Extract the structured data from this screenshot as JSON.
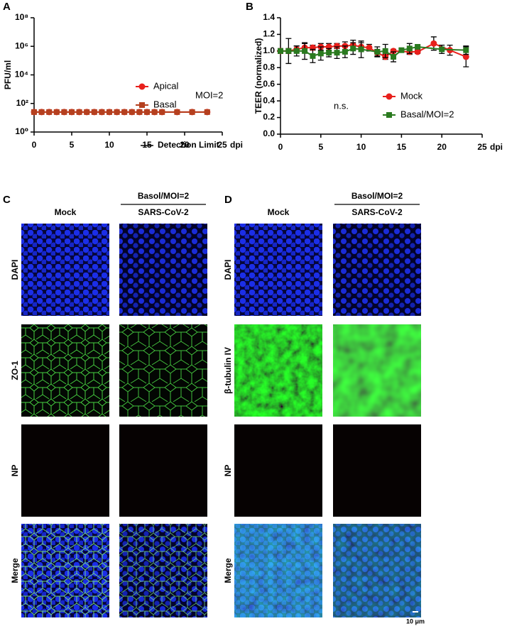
{
  "chart_data": [
    {
      "type": "line",
      "panel_label": "A",
      "ylabel": "PFU/ml",
      "xlabel": "dpi",
      "log_y": true,
      "xlim": [
        0,
        25
      ],
      "xticks": [
        0,
        5,
        10,
        15,
        20,
        25
      ],
      "ylim": [
        1,
        100000000
      ],
      "yticks": [
        {
          "value": 1,
          "label": "10⁰"
        },
        {
          "value": 100,
          "label": "10²"
        },
        {
          "value": 10000,
          "label": "10⁴"
        },
        {
          "value": 1000000,
          "label": "10⁶"
        },
        {
          "value": 100000000,
          "label": "10⁸"
        }
      ],
      "annotation": "MOI=2",
      "reference_line": {
        "name": "Detection Limit",
        "value": 25,
        "color": "#000000"
      },
      "series": [
        {
          "name": "Apical",
          "color": "#e8201c",
          "marker": "circle",
          "x": [
            0,
            1,
            2,
            3,
            4,
            5,
            6,
            7,
            8,
            9,
            10,
            11,
            12,
            13,
            14,
            15,
            16,
            17,
            19,
            21,
            23
          ],
          "values": [
            25,
            25,
            25,
            25,
            25,
            25,
            25,
            25,
            25,
            25,
            25,
            25,
            25,
            25,
            25,
            25,
            25,
            25,
            25,
            25,
            25
          ]
        },
        {
          "name": "Basal",
          "color": "#b5401f",
          "marker": "square",
          "x": [
            0,
            1,
            2,
            3,
            4,
            5,
            6,
            7,
            8,
            9,
            10,
            11,
            12,
            13,
            14,
            15,
            16,
            17,
            19,
            21,
            23
          ],
          "values": [
            25,
            25,
            25,
            25,
            25,
            25,
            25,
            25,
            25,
            25,
            25,
            25,
            25,
            25,
            25,
            25,
            25,
            25,
            25,
            25,
            25
          ]
        }
      ]
    },
    {
      "type": "line",
      "panel_label": "B",
      "ylabel": "TEER (normalized)",
      "xlabel": "dpi",
      "xlim": [
        0,
        25
      ],
      "xticks": [
        0,
        5,
        10,
        15,
        20,
        25
      ],
      "ylim": [
        0,
        1.4
      ],
      "yticks": [
        {
          "value": 0,
          "label": "0.0"
        },
        0.2,
        0.4,
        0.6,
        0.8,
        {
          "value": 1,
          "label": "1.0"
        },
        1.2,
        1.4
      ],
      "annotation": "n.s.",
      "series": [
        {
          "name": "Mock",
          "color": "#e8201c",
          "marker": "circle",
          "x": [
            0,
            1,
            2,
            3,
            4,
            5,
            6,
            7,
            8,
            9,
            10,
            11,
            12,
            13,
            14,
            16,
            17,
            19,
            21,
            23
          ],
          "values": [
            1.0,
            1.0,
            1.02,
            1.04,
            1.04,
            1.05,
            1.05,
            1.06,
            1.06,
            1.07,
            1.05,
            1.04,
            0.98,
            0.93,
            1.0,
            0.99,
            0.99,
            1.09,
            1.01,
            0.93
          ],
          "errors": [
            0.03,
            0.15,
            0.04,
            0.05,
            0.03,
            0.04,
            0.04,
            0.03,
            0.05,
            0.06,
            0.05,
            0.04,
            0.04,
            0.03,
            0.02,
            0.03,
            0.02,
            0.08,
            0.06,
            0.12
          ]
        },
        {
          "name": "Basal/MOI=2",
          "color": "#2a7a1f",
          "marker": "square",
          "x": [
            0,
            1,
            2,
            3,
            4,
            5,
            6,
            7,
            8,
            9,
            10,
            12,
            13,
            14,
            15,
            16,
            17,
            20,
            23
          ],
          "values": [
            1.0,
            1.0,
            1.0,
            1.0,
            0.94,
            0.97,
            0.98,
            0.98,
            0.99,
            1.03,
            1.02,
            0.99,
            1.0,
            0.93,
            1.01,
            1.03,
            1.05,
            1.02,
            1.01
          ],
          "errors": [
            0.02,
            0.03,
            0.06,
            0.1,
            0.08,
            0.08,
            0.05,
            0.07,
            0.07,
            0.07,
            0.1,
            0.06,
            0.08,
            0.06,
            0.02,
            0.06,
            0.02,
            0.05,
            0.05
          ]
        }
      ]
    }
  ],
  "panels": [
    {
      "label": "C",
      "group": "Basol/MOI=2",
      "columns": [
        "Mock",
        "SARS-CoV-2"
      ],
      "rows": [
        "DAPI",
        "ZO-1",
        "NP",
        "Merge"
      ]
    },
    {
      "label": "D",
      "group": "Basol/MOI=2",
      "columns": [
        "Mock",
        "SARS-CoV-2"
      ],
      "rows": [
        "DAPI",
        "β-tubulin IV",
        "NP",
        "Merge"
      ],
      "scale_bar": "10 μm"
    }
  ]
}
